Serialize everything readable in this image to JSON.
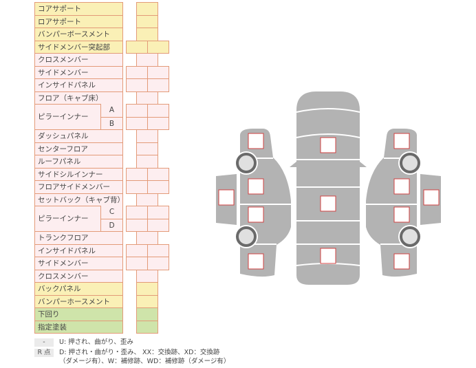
{
  "colors": {
    "yellow": "#faf0b6",
    "pink": "#fdeef0",
    "green": "#cfe4aa",
    "border": "#e39a78",
    "car_gray": "#b3b3b3",
    "marker_border": "#d04040"
  },
  "rows": [
    {
      "label": "コアサポート",
      "color": "yellow",
      "cells": 1
    },
    {
      "label": "ロアサポート",
      "color": "yellow",
      "cells": 1
    },
    {
      "label": "バンパーボースメント",
      "color": "yellow",
      "cells": 1
    },
    {
      "label": "サイドメンバー突起部",
      "color": "yellow",
      "cells": 2
    },
    {
      "label": "クロスメンバー",
      "color": "pink",
      "cells": 1
    },
    {
      "label": "サイドメンバー",
      "color": "pink",
      "cells": 2
    },
    {
      "label": "インサイドパネル",
      "color": "pink",
      "cells": 2
    },
    {
      "label": "フロア（キャブ床）",
      "color": "pink",
      "cells": 1
    },
    {
      "label": "ピラーインナー",
      "color": "pink",
      "cells": 2,
      "subs": [
        "A",
        "B"
      ]
    },
    {
      "label": "ダッシュパネル",
      "color": "pink",
      "cells": 1
    },
    {
      "label": "センターフロア",
      "color": "pink",
      "cells": 1
    },
    {
      "label": "ルーフパネル",
      "color": "pink",
      "cells": 1
    },
    {
      "label": "サイドシルインナー",
      "color": "pink",
      "cells": 2
    },
    {
      "label": "フロアサイドメンバー",
      "color": "pink",
      "cells": 2
    },
    {
      "label": "セットバック（キャブ背）",
      "color": "pink",
      "cells": 1
    },
    {
      "label": "ピラーインナー",
      "color": "pink",
      "cells": 2,
      "subs": [
        "C",
        "D"
      ]
    },
    {
      "label": "トランクフロア",
      "color": "pink",
      "cells": 1
    },
    {
      "label": "インサイドパネル",
      "color": "pink",
      "cells": 2
    },
    {
      "label": "サイドメンバー",
      "color": "pink",
      "cells": 2
    },
    {
      "label": "クロスメンバー",
      "color": "pink",
      "cells": 1
    },
    {
      "label": "バックパネル",
      "color": "yellow",
      "cells": 1
    },
    {
      "label": "バンパーホースメント",
      "color": "yellow",
      "cells": 1
    },
    {
      "label": "下回り",
      "color": "green",
      "cells": 1
    },
    {
      "label": "指定塗装",
      "color": "green",
      "cells": 1
    }
  ],
  "legend": {
    "key1": "-",
    "text1": "U: 押され、曲がり、歪み",
    "key2": "R 点",
    "text2a": "D: 押され・曲がり・歪み、 XX：交換跡、XD：交換跡",
    "text2b": "（ダメージ有）、W：補修跡、WD：補修跡（ダメージ有）"
  },
  "diagram": {
    "markers": 13,
    "wheels": 4
  }
}
